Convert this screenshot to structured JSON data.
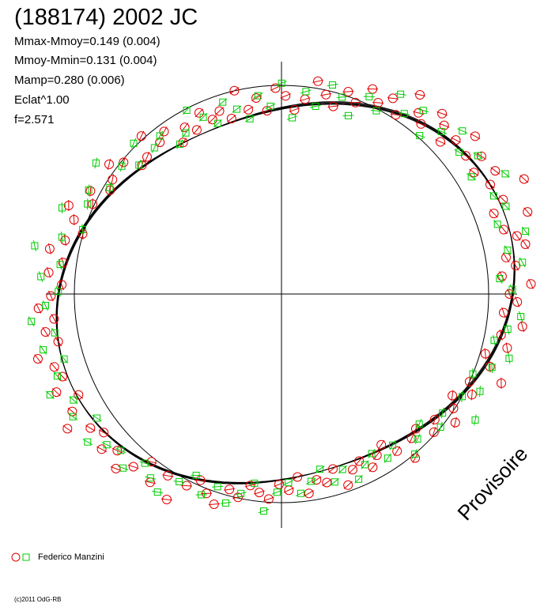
{
  "title": "(188174) 2002 JC",
  "stats": {
    "mmax_mmoy": "Mmax-Mmoy=0.149 (0.004)",
    "mmoy_mmin": "Mmoy-Mmin=0.131 (0.004)",
    "mamp": "Mamp=0.280 (0.006)",
    "eclat": "Eclat^1.00",
    "f": "f=2.571"
  },
  "watermark": "Provisoire",
  "legend": {
    "observer": "Federico Manzini"
  },
  "copyright": "(c)2011 OdG-RB",
  "colors": {
    "red_series": "#e00000",
    "green_series": "#00cc00",
    "curve": "#000000"
  },
  "chart_data": {
    "type": "scatter",
    "projection": "polar",
    "title": "(188174) 2002 JC",
    "mmax_mmoy": 0.149,
    "mmoy_mmin": 0.131,
    "amplitude": 0.28,
    "frequency": 2.571,
    "reference_circle": true,
    "axes_cross": true,
    "series": [
      {
        "name": "Federico Manzini",
        "marker": "circle",
        "color": "#e00000",
        "points": [
          {
            "theta": 0.0,
            "r": 1.01
          },
          {
            "theta": 0.04,
            "r": 1.1
          },
          {
            "theta": 0.08,
            "r": 0.97
          },
          {
            "theta": 0.12,
            "r": 1.03
          },
          {
            "theta": 0.16,
            "r": 0.99
          },
          {
            "theta": 0.2,
            "r": 1.08
          },
          {
            "theta": 0.24,
            "r": 1.05
          },
          {
            "theta": 0.28,
            "r": 1.0
          },
          {
            "theta": 0.32,
            "r": 1.12
          },
          {
            "theta": 0.36,
            "r": 0.98
          },
          {
            "theta": 0.4,
            "r": 1.04
          },
          {
            "theta": 0.44,
            "r": 1.16
          },
          {
            "theta": 0.48,
            "r": 1.02
          },
          {
            "theta": 0.52,
            "r": 1.07
          },
          {
            "theta": 0.56,
            "r": 0.99
          },
          {
            "theta": 0.6,
            "r": 1.06
          },
          {
            "theta": 0.64,
            "r": 1.01
          },
          {
            "theta": 0.68,
            "r": 1.1
          },
          {
            "theta": 0.72,
            "r": 1.03
          },
          {
            "theta": 0.76,
            "r": 0.98
          },
          {
            "theta": 0.8,
            "r": 1.05
          },
          {
            "theta": 0.84,
            "r": 1.09
          },
          {
            "theta": 0.88,
            "r": 1.0
          },
          {
            "theta": 0.92,
            "r": 1.04
          },
          {
            "theta": 0.96,
            "r": 1.12
          },
          {
            "theta": 1.0,
            "r": 0.99
          },
          {
            "theta": 1.05,
            "r": 1.06
          },
          {
            "theta": 1.1,
            "r": 1.02
          },
          {
            "theta": 1.15,
            "r": 1.08
          },
          {
            "theta": 1.2,
            "r": 1.0
          },
          {
            "theta": 1.25,
            "r": 1.05
          },
          {
            "theta": 1.3,
            "r": 0.97
          },
          {
            "theta": 1.35,
            "r": 1.03
          },
          {
            "theta": 1.4,
            "r": 1.1
          },
          {
            "theta": 1.45,
            "r": 1.01
          },
          {
            "theta": 1.5,
            "r": 0.96
          },
          {
            "theta": 1.55,
            "r": 1.04
          },
          {
            "theta": 1.6,
            "r": 1.09
          },
          {
            "theta": 1.65,
            "r": 0.98
          },
          {
            "theta": 1.7,
            "r": 1.06
          },
          {
            "theta": 1.75,
            "r": 1.01
          },
          {
            "theta": 1.8,
            "r": 1.13
          },
          {
            "theta": 1.85,
            "r": 0.99
          },
          {
            "theta": 1.9,
            "r": 1.05
          },
          {
            "theta": 1.95,
            "r": 1.02
          },
          {
            "theta": 2.0,
            "r": 1.08
          },
          {
            "theta": 2.05,
            "r": 1.0
          },
          {
            "theta": 2.1,
            "r": 1.04
          },
          {
            "theta": 2.15,
            "r": 0.97
          },
          {
            "theta": 2.2,
            "r": 1.07
          },
          {
            "theta": 2.25,
            "r": 1.03
          },
          {
            "theta": 2.3,
            "r": 1.11
          },
          {
            "theta": 2.35,
            "r": 1.0
          },
          {
            "theta": 2.4,
            "r": 0.98
          },
          {
            "theta": 2.45,
            "r": 1.05
          },
          {
            "theta": 2.5,
            "r": 1.09
          },
          {
            "theta": 2.55,
            "r": 1.02
          },
          {
            "theta": 2.6,
            "r": 0.99
          },
          {
            "theta": 2.65,
            "r": 1.06
          },
          {
            "theta": 2.7,
            "r": 1.01
          },
          {
            "theta": 2.75,
            "r": 1.1
          },
          {
            "theta": 2.8,
            "r": 1.04
          },
          {
            "theta": 2.85,
            "r": 0.97
          },
          {
            "theta": 2.9,
            "r": 1.03
          },
          {
            "theta": 2.95,
            "r": 1.08
          },
          {
            "theta": 3.0,
            "r": 1.0
          },
          {
            "theta": 3.05,
            "r": 1.05
          },
          {
            "theta": 3.1,
            "r": 0.98
          },
          {
            "theta": 3.15,
            "r": 1.02
          },
          {
            "theta": 3.2,
            "r": 1.07
          },
          {
            "theta": 3.25,
            "r": 1.0
          },
          {
            "theta": 3.3,
            "r": 1.04
          },
          {
            "theta": 3.35,
            "r": 0.99
          },
          {
            "theta": 3.4,
            "r": 1.09
          },
          {
            "theta": 3.45,
            "r": 1.03
          },
          {
            "theta": 3.5,
            "r": 1.01
          },
          {
            "theta": 3.55,
            "r": 1.06
          },
          {
            "theta": 3.6,
            "r": 0.98
          },
          {
            "theta": 3.65,
            "r": 1.04
          },
          {
            "theta": 3.7,
            "r": 1.1
          },
          {
            "theta": 3.75,
            "r": 1.02
          },
          {
            "theta": 3.8,
            "r": 0.99
          },
          {
            "theta": 3.85,
            "r": 1.05
          },
          {
            "theta": 3.9,
            "r": 1.01
          },
          {
            "theta": 3.95,
            "r": 1.08
          },
          {
            "theta": 4.0,
            "r": 1.03
          },
          {
            "theta": 4.05,
            "r": 0.97
          },
          {
            "theta": 4.1,
            "r": 1.06
          },
          {
            "theta": 4.15,
            "r": 1.0
          },
          {
            "theta": 4.2,
            "r": 1.11
          },
          {
            "theta": 4.25,
            "r": 1.02
          },
          {
            "theta": 4.3,
            "r": 0.98
          },
          {
            "theta": 4.35,
            "r": 1.04
          },
          {
            "theta": 4.4,
            "r": 1.09
          },
          {
            "theta": 4.45,
            "r": 1.01
          },
          {
            "theta": 4.5,
            "r": 1.05
          },
          {
            "theta": 4.55,
            "r": 0.99
          },
          {
            "theta": 4.6,
            "r": 1.03
          },
          {
            "theta": 4.65,
            "r": 1.07
          },
          {
            "theta": 4.7,
            "r": 1.0
          },
          {
            "theta": 4.75,
            "r": 1.04
          },
          {
            "theta": 4.8,
            "r": 0.98
          },
          {
            "theta": 4.85,
            "r": 1.08
          },
          {
            "theta": 4.9,
            "r": 1.02
          },
          {
            "theta": 4.95,
            "r": 1.05
          },
          {
            "theta": 5.0,
            "r": 0.99
          },
          {
            "theta": 5.05,
            "r": 1.1
          },
          {
            "theta": 5.1,
            "r": 1.03
          },
          {
            "theta": 5.15,
            "r": 1.0
          },
          {
            "theta": 5.2,
            "r": 1.06
          },
          {
            "theta": 5.25,
            "r": 1.01
          },
          {
            "theta": 5.3,
            "r": 0.97
          },
          {
            "theta": 5.35,
            "r": 1.04
          },
          {
            "theta": 5.4,
            "r": 1.12
          },
          {
            "theta": 5.45,
            "r": 1.02
          },
          {
            "theta": 5.5,
            "r": 0.99
          },
          {
            "theta": 5.55,
            "r": 1.06
          },
          {
            "theta": 5.6,
            "r": 1.01
          },
          {
            "theta": 5.65,
            "r": 1.09
          },
          {
            "theta": 5.7,
            "r": 1.03
          },
          {
            "theta": 5.75,
            "r": 0.98
          },
          {
            "theta": 5.8,
            "r": 1.05
          },
          {
            "theta": 5.85,
            "r": 1.0
          },
          {
            "theta": 5.9,
            "r": 1.13
          },
          {
            "theta": 5.95,
            "r": 1.04
          },
          {
            "theta": 6.0,
            "r": 0.99
          },
          {
            "theta": 6.05,
            "r": 1.07
          },
          {
            "theta": 6.1,
            "r": 1.02
          },
          {
            "theta": 6.15,
            "r": 1.1
          },
          {
            "theta": 6.2,
            "r": 1.0
          },
          {
            "theta": 6.25,
            "r": 1.05
          }
        ]
      },
      {
        "name": "",
        "marker": "square",
        "color": "#00cc00",
        "points": [
          {
            "theta": 0.02,
            "r": 1.02
          },
          {
            "theta": 0.07,
            "r": 0.96
          },
          {
            "theta": 0.13,
            "r": 1.06
          },
          {
            "theta": 0.19,
            "r": 1.0
          },
          {
            "theta": 0.25,
            "r": 1.09
          },
          {
            "theta": 0.31,
            "r": 0.98
          },
          {
            "theta": 0.37,
            "r": 1.04
          },
          {
            "theta": 0.43,
            "r": 1.01
          },
          {
            "theta": 0.49,
            "r": 1.1
          },
          {
            "theta": 0.55,
            "r": 0.97
          },
          {
            "theta": 0.61,
            "r": 1.05
          },
          {
            "theta": 0.67,
            "r": 1.0
          },
          {
            "theta": 0.73,
            "r": 1.08
          },
          {
            "theta": 0.79,
            "r": 1.02
          },
          {
            "theta": 0.85,
            "r": 0.95
          },
          {
            "theta": 0.91,
            "r": 1.06
          },
          {
            "theta": 0.97,
            "r": 1.01
          },
          {
            "theta": 1.03,
            "r": 1.09
          },
          {
            "theta": 1.09,
            "r": 0.98
          },
          {
            "theta": 1.15,
            "r": 1.04
          },
          {
            "theta": 1.21,
            "r": 0.93
          },
          {
            "theta": 1.27,
            "r": 1.02
          },
          {
            "theta": 1.33,
            "r": 1.08
          },
          {
            "theta": 1.39,
            "r": 0.97
          },
          {
            "theta": 1.45,
            "r": 1.05
          },
          {
            "theta": 1.51,
            "r": 0.92
          },
          {
            "theta": 1.57,
            "r": 1.11
          },
          {
            "theta": 1.63,
            "r": 1.0
          },
          {
            "theta": 1.69,
            "r": 1.07
          },
          {
            "theta": 1.75,
            "r": 0.96
          },
          {
            "theta": 1.81,
            "r": 1.03
          },
          {
            "theta": 1.87,
            "r": 1.09
          },
          {
            "theta": 1.93,
            "r": 0.99
          },
          {
            "theta": 1.99,
            "r": 1.05
          },
          {
            "theta": 2.05,
            "r": 1.12
          },
          {
            "theta": 2.11,
            "r": 1.01
          },
          {
            "theta": 2.17,
            "r": 0.97
          },
          {
            "theta": 2.23,
            "r": 1.06
          },
          {
            "theta": 2.29,
            "r": 1.02
          },
          {
            "theta": 2.35,
            "r": 1.1
          },
          {
            "theta": 2.41,
            "r": 0.99
          },
          {
            "theta": 2.47,
            "r": 1.04
          },
          {
            "theta": 2.53,
            "r": 1.14
          },
          {
            "theta": 2.59,
            "r": 1.0
          },
          {
            "theta": 2.65,
            "r": 1.07
          },
          {
            "theta": 2.71,
            "r": 1.03
          },
          {
            "theta": 2.77,
            "r": 1.12
          },
          {
            "theta": 2.83,
            "r": 0.98
          },
          {
            "theta": 2.89,
            "r": 1.05
          },
          {
            "theta": 2.95,
            "r": 1.15
          },
          {
            "theta": 3.01,
            "r": 1.01
          },
          {
            "theta": 3.07,
            "r": 1.08
          },
          {
            "theta": 3.13,
            "r": 0.99
          },
          {
            "theta": 3.19,
            "r": 1.04
          },
          {
            "theta": 3.25,
            "r": 1.1
          },
          {
            "theta": 3.31,
            "r": 1.0
          },
          {
            "theta": 3.37,
            "r": 1.06
          },
          {
            "theta": 3.43,
            "r": 0.98
          },
          {
            "theta": 3.49,
            "r": 1.03
          },
          {
            "theta": 3.55,
            "r": 1.09
          },
          {
            "theta": 3.61,
            "r": 1.01
          },
          {
            "theta": 3.67,
            "r": 1.05
          },
          {
            "theta": 3.73,
            "r": 0.97
          },
          {
            "theta": 3.79,
            "r": 1.07
          },
          {
            "theta": 3.85,
            "r": 1.02
          },
          {
            "theta": 3.91,
            "r": 1.0
          },
          {
            "theta": 3.97,
            "r": 1.06
          },
          {
            "theta": 4.03,
            "r": 0.99
          },
          {
            "theta": 4.09,
            "r": 1.04
          },
          {
            "theta": 4.15,
            "r": 1.09
          },
          {
            "theta": 4.21,
            "r": 1.01
          },
          {
            "theta": 4.27,
            "r": 0.96
          },
          {
            "theta": 4.33,
            "r": 1.05
          },
          {
            "theta": 4.39,
            "r": 1.0
          },
          {
            "theta": 4.45,
            "r": 1.08
          },
          {
            "theta": 4.51,
            "r": 1.03
          },
          {
            "theta": 4.57,
            "r": 0.98
          },
          {
            "theta": 4.63,
            "r": 1.13
          },
          {
            "theta": 4.69,
            "r": 1.04
          },
          {
            "theta": 4.75,
            "r": 1.0
          },
          {
            "theta": 4.81,
            "r": 1.07
          },
          {
            "theta": 4.87,
            "r": 1.02
          },
          {
            "theta": 4.93,
            "r": 0.97
          },
          {
            "theta": 4.99,
            "r": 1.06
          },
          {
            "theta": 5.05,
            "r": 1.01
          },
          {
            "theta": 5.11,
            "r": 1.09
          },
          {
            "theta": 5.17,
            "r": 1.03
          },
          {
            "theta": 5.23,
            "r": 0.99
          },
          {
            "theta": 5.29,
            "r": 1.05
          },
          {
            "theta": 5.35,
            "r": 1.0
          },
          {
            "theta": 5.41,
            "r": 1.1
          },
          {
            "theta": 5.47,
            "r": 1.04
          },
          {
            "theta": 5.53,
            "r": 0.98
          },
          {
            "theta": 5.59,
            "r": 1.06
          },
          {
            "theta": 5.65,
            "r": 1.01
          },
          {
            "theta": 5.71,
            "r": 1.15
          },
          {
            "theta": 5.77,
            "r": 1.02
          },
          {
            "theta": 5.83,
            "r": 1.07
          },
          {
            "theta": 5.89,
            "r": 0.99
          },
          {
            "theta": 5.95,
            "r": 1.05
          },
          {
            "theta": 6.01,
            "r": 1.1
          },
          {
            "theta": 6.07,
            "r": 1.0
          },
          {
            "theta": 6.13,
            "r": 1.04
          },
          {
            "theta": 6.19,
            "r": 1.08
          }
        ]
      }
    ]
  }
}
